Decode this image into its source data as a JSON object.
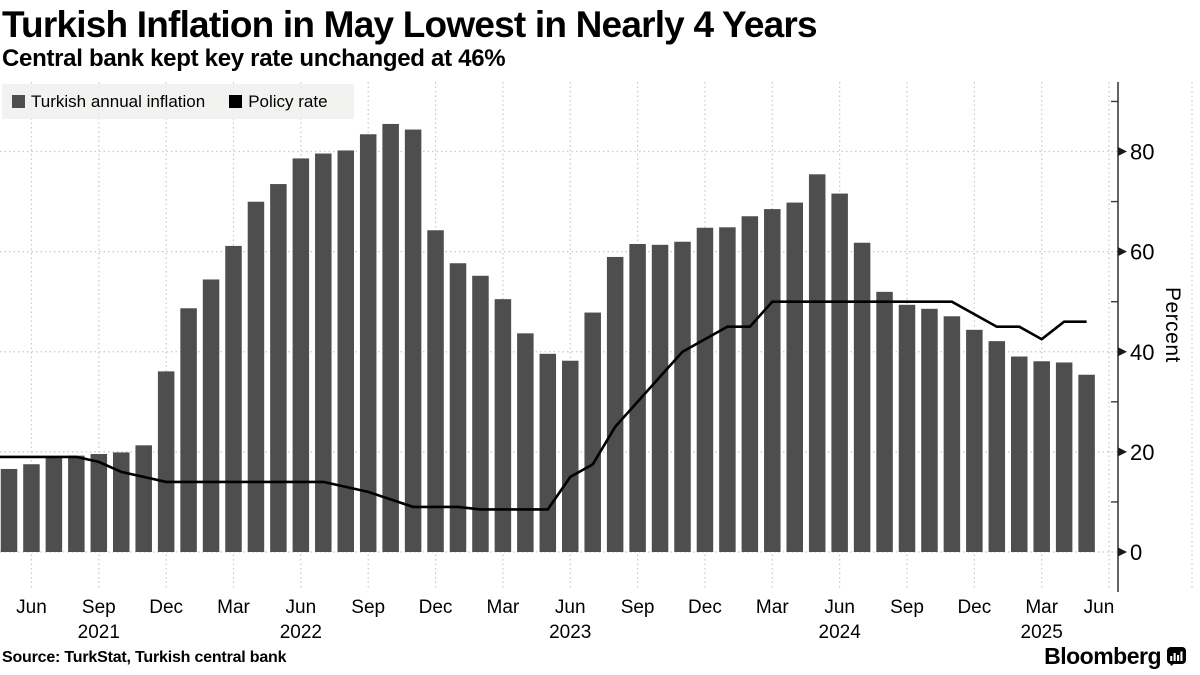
{
  "header": {
    "title": "Turkish Inflation in May Lowest in Nearly 4 Years",
    "subtitle": "Central bank kept key rate unchanged at 46%"
  },
  "legend": {
    "series1_label": "Turkish annual inflation",
    "series2_label": "Policy rate"
  },
  "footer": {
    "source": "Source: TurkStat, Turkish central bank",
    "brand": "Bloomberg"
  },
  "colors": {
    "bar": "#4e4e4e",
    "line": "#000000",
    "legend_bg": "#efefee",
    "grid": "#c7c7c7",
    "axis": "#3c3c3c"
  },
  "chart_data": {
    "type": "bar+line",
    "title": "Turkish Inflation in May Lowest in Nearly 4 Years",
    "subtitle": "Central bank kept key rate unchanged at 46%",
    "ylabel": "Percent",
    "ylim": [
      -8,
      93.5
    ],
    "y_ticks": [
      0,
      20,
      40,
      60,
      80
    ],
    "y_minor_ticks": [
      10,
      30,
      50,
      70,
      90
    ],
    "grid": "dotted",
    "legend_position": "top-left",
    "categories": [
      "May 2021",
      "Jun 2021",
      "Jul 2021",
      "Aug 2021",
      "Sep 2021",
      "Oct 2021",
      "Nov 2021",
      "Dec 2021",
      "Jan 2022",
      "Feb 2022",
      "Mar 2022",
      "Apr 2022",
      "May 2022",
      "Jun 2022",
      "Jul 2022",
      "Aug 2022",
      "Sep 2022",
      "Oct 2022",
      "Nov 2022",
      "Dec 2022",
      "Jan 2023",
      "Feb 2023",
      "Mar 2023",
      "Apr 2023",
      "May 2023",
      "Jun 2023",
      "Jul 2023",
      "Aug 2023",
      "Sep 2023",
      "Oct 2023",
      "Nov 2023",
      "Dec 2023",
      "Jan 2024",
      "Feb 2024",
      "Mar 2024",
      "Apr 2024",
      "May 2024",
      "Jun 2024",
      "Jul 2024",
      "Aug 2024",
      "Sep 2024",
      "Oct 2024",
      "Nov 2024",
      "Dec 2024",
      "Jan 2025",
      "Feb 2025",
      "Mar 2025",
      "Apr 2025",
      "May 2025"
    ],
    "series": [
      {
        "name": "Turkish annual inflation",
        "type": "bar",
        "color": "#4e4e4e",
        "values": [
          16.59,
          17.53,
          18.95,
          19.25,
          19.58,
          19.89,
          21.31,
          36.08,
          48.69,
          54.44,
          61.14,
          69.97,
          73.5,
          78.62,
          79.6,
          80.21,
          83.45,
          85.51,
          84.39,
          64.27,
          57.68,
          55.18,
          50.51,
          43.68,
          39.59,
          38.21,
          47.83,
          58.94,
          61.53,
          61.36,
          61.98,
          64.77,
          64.86,
          67.07,
          68.5,
          69.8,
          75.45,
          71.6,
          61.78,
          51.97,
          49.38,
          48.58,
          47.09,
          44.38,
          42.12,
          39.05,
          38.1,
          37.86,
          35.41
        ]
      },
      {
        "name": "Policy rate",
        "type": "line",
        "color": "#000000",
        "values": [
          19,
          19,
          19,
          19,
          18,
          16,
          15,
          14,
          14,
          14,
          14,
          14,
          14,
          14,
          14,
          13,
          12,
          10.5,
          9,
          9,
          9,
          8.5,
          8.5,
          8.5,
          8.5,
          15,
          17.5,
          25,
          30,
          35,
          40,
          42.5,
          45,
          45,
          50,
          50,
          50,
          50,
          50,
          50,
          50,
          50,
          50,
          47.5,
          45,
          45,
          42.5,
          46,
          46
        ]
      }
    ],
    "x_quarter_ticks": [
      {
        "label": "Jun",
        "month_index": 1
      },
      {
        "label": "Sep",
        "month_index": 4
      },
      {
        "label": "Dec",
        "month_index": 7
      },
      {
        "label": "Mar",
        "month_index": 10
      },
      {
        "label": "Jun",
        "month_index": 13
      },
      {
        "label": "Sep",
        "month_index": 16
      },
      {
        "label": "Dec",
        "month_index": 19
      },
      {
        "label": "Mar",
        "month_index": 22
      },
      {
        "label": "Jun",
        "month_index": 25
      },
      {
        "label": "Sep",
        "month_index": 28
      },
      {
        "label": "Dec",
        "month_index": 31
      },
      {
        "label": "Mar",
        "month_index": 34
      },
      {
        "label": "Jun",
        "month_index": 37
      },
      {
        "label": "Sep",
        "month_index": 40
      },
      {
        "label": "Dec",
        "month_index": 43
      },
      {
        "label": "Mar",
        "month_index": 46
      },
      {
        "label": "Jun",
        "month_index": 49
      }
    ],
    "x_year_labels": [
      {
        "label": "2021",
        "month_index": 4
      },
      {
        "label": "2022",
        "month_index": 13
      },
      {
        "label": "2023",
        "month_index": 25
      },
      {
        "label": "2024",
        "month_index": 37
      },
      {
        "label": "2025",
        "month_index": 46
      }
    ]
  }
}
